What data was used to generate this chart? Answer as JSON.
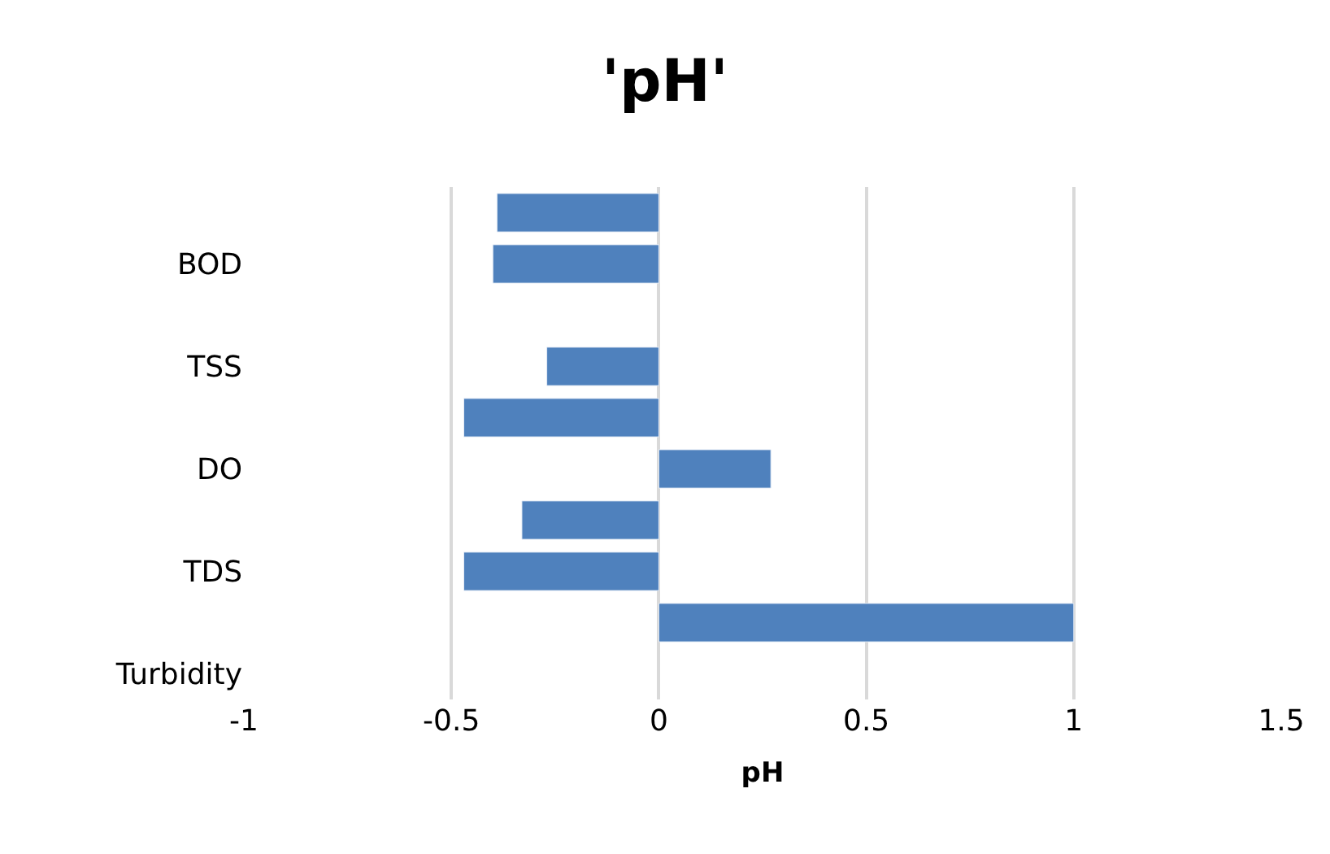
{
  "chart_data": {
    "type": "bar",
    "orientation": "horizontal",
    "title": "'pH'",
    "xlabel": "pH",
    "categories": [
      null,
      "BOD",
      null,
      "TSS",
      null,
      "DO",
      null,
      "TDS",
      null,
      "Turbidity"
    ],
    "values": [
      -0.39,
      -0.4,
      null,
      -0.27,
      -0.47,
      0.27,
      -0.33,
      -0.47,
      1.0,
      null
    ],
    "color": "#4f81bd",
    "xlim": [
      -1,
      1.5
    ],
    "xticks": [
      -1,
      -0.5,
      0,
      0.5,
      1,
      1.5
    ],
    "grid": "x",
    "legend": false
  }
}
